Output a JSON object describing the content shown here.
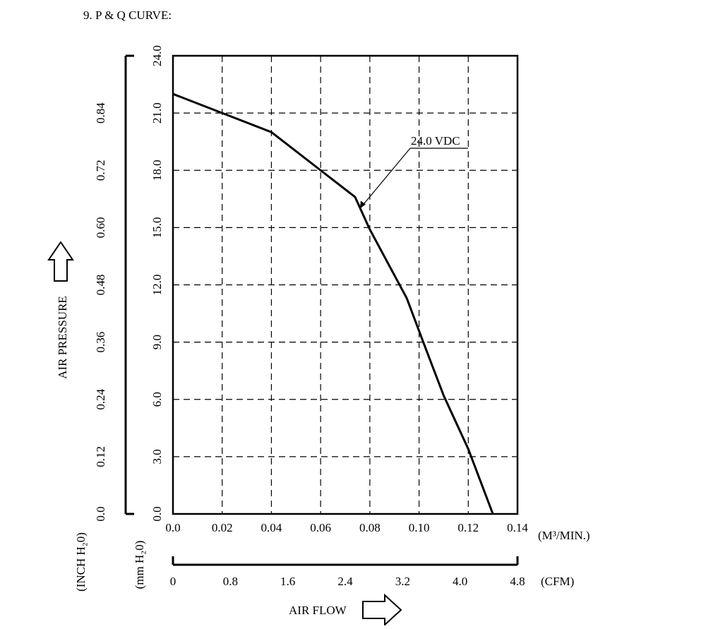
{
  "heading": "9. P & Q CURVE:",
  "chart_data": {
    "type": "line",
    "title": "P & Q CURVE",
    "xlabel": "AIR FLOW",
    "ylabel": "AIR PRESSURE",
    "x_unit_primary": "(M³/MIN.)",
    "x_unit_secondary": "(CFM)",
    "y_unit_primary": "(mm H₂0)",
    "y_unit_secondary": "(INCH H₂0)",
    "xlim": [
      0,
      0.14
    ],
    "ylim": [
      0,
      24
    ],
    "x_ticks": [
      "0.0",
      "0.02",
      "0.04",
      "0.06",
      "0.08",
      "0.10",
      "0.12",
      "0.14"
    ],
    "x2_ticks": [
      "0",
      "0.8",
      "1.6",
      "2.4",
      "3.2",
      "4.0",
      "4.8"
    ],
    "y_ticks": [
      "0.0",
      "3.0",
      "6.0",
      "9.0",
      "12.0",
      "15.0",
      "18.0",
      "21.0",
      "24.0"
    ],
    "y2_ticks": [
      "0.0",
      "0.12",
      "0.24",
      "0.36",
      "0.48",
      "0.60",
      "0.72",
      "0.84"
    ],
    "grid": true,
    "series": [
      {
        "name": "24.0 VDC",
        "x": [
          0.0,
          0.02,
          0.04,
          0.06,
          0.074,
          0.08,
          0.095,
          0.102,
          0.11,
          0.12,
          0.13
        ],
        "y": [
          22.0,
          21.0,
          20.0,
          18.0,
          16.6,
          14.9,
          11.3,
          8.9,
          6.2,
          3.4,
          0.0
        ]
      }
    ]
  }
}
